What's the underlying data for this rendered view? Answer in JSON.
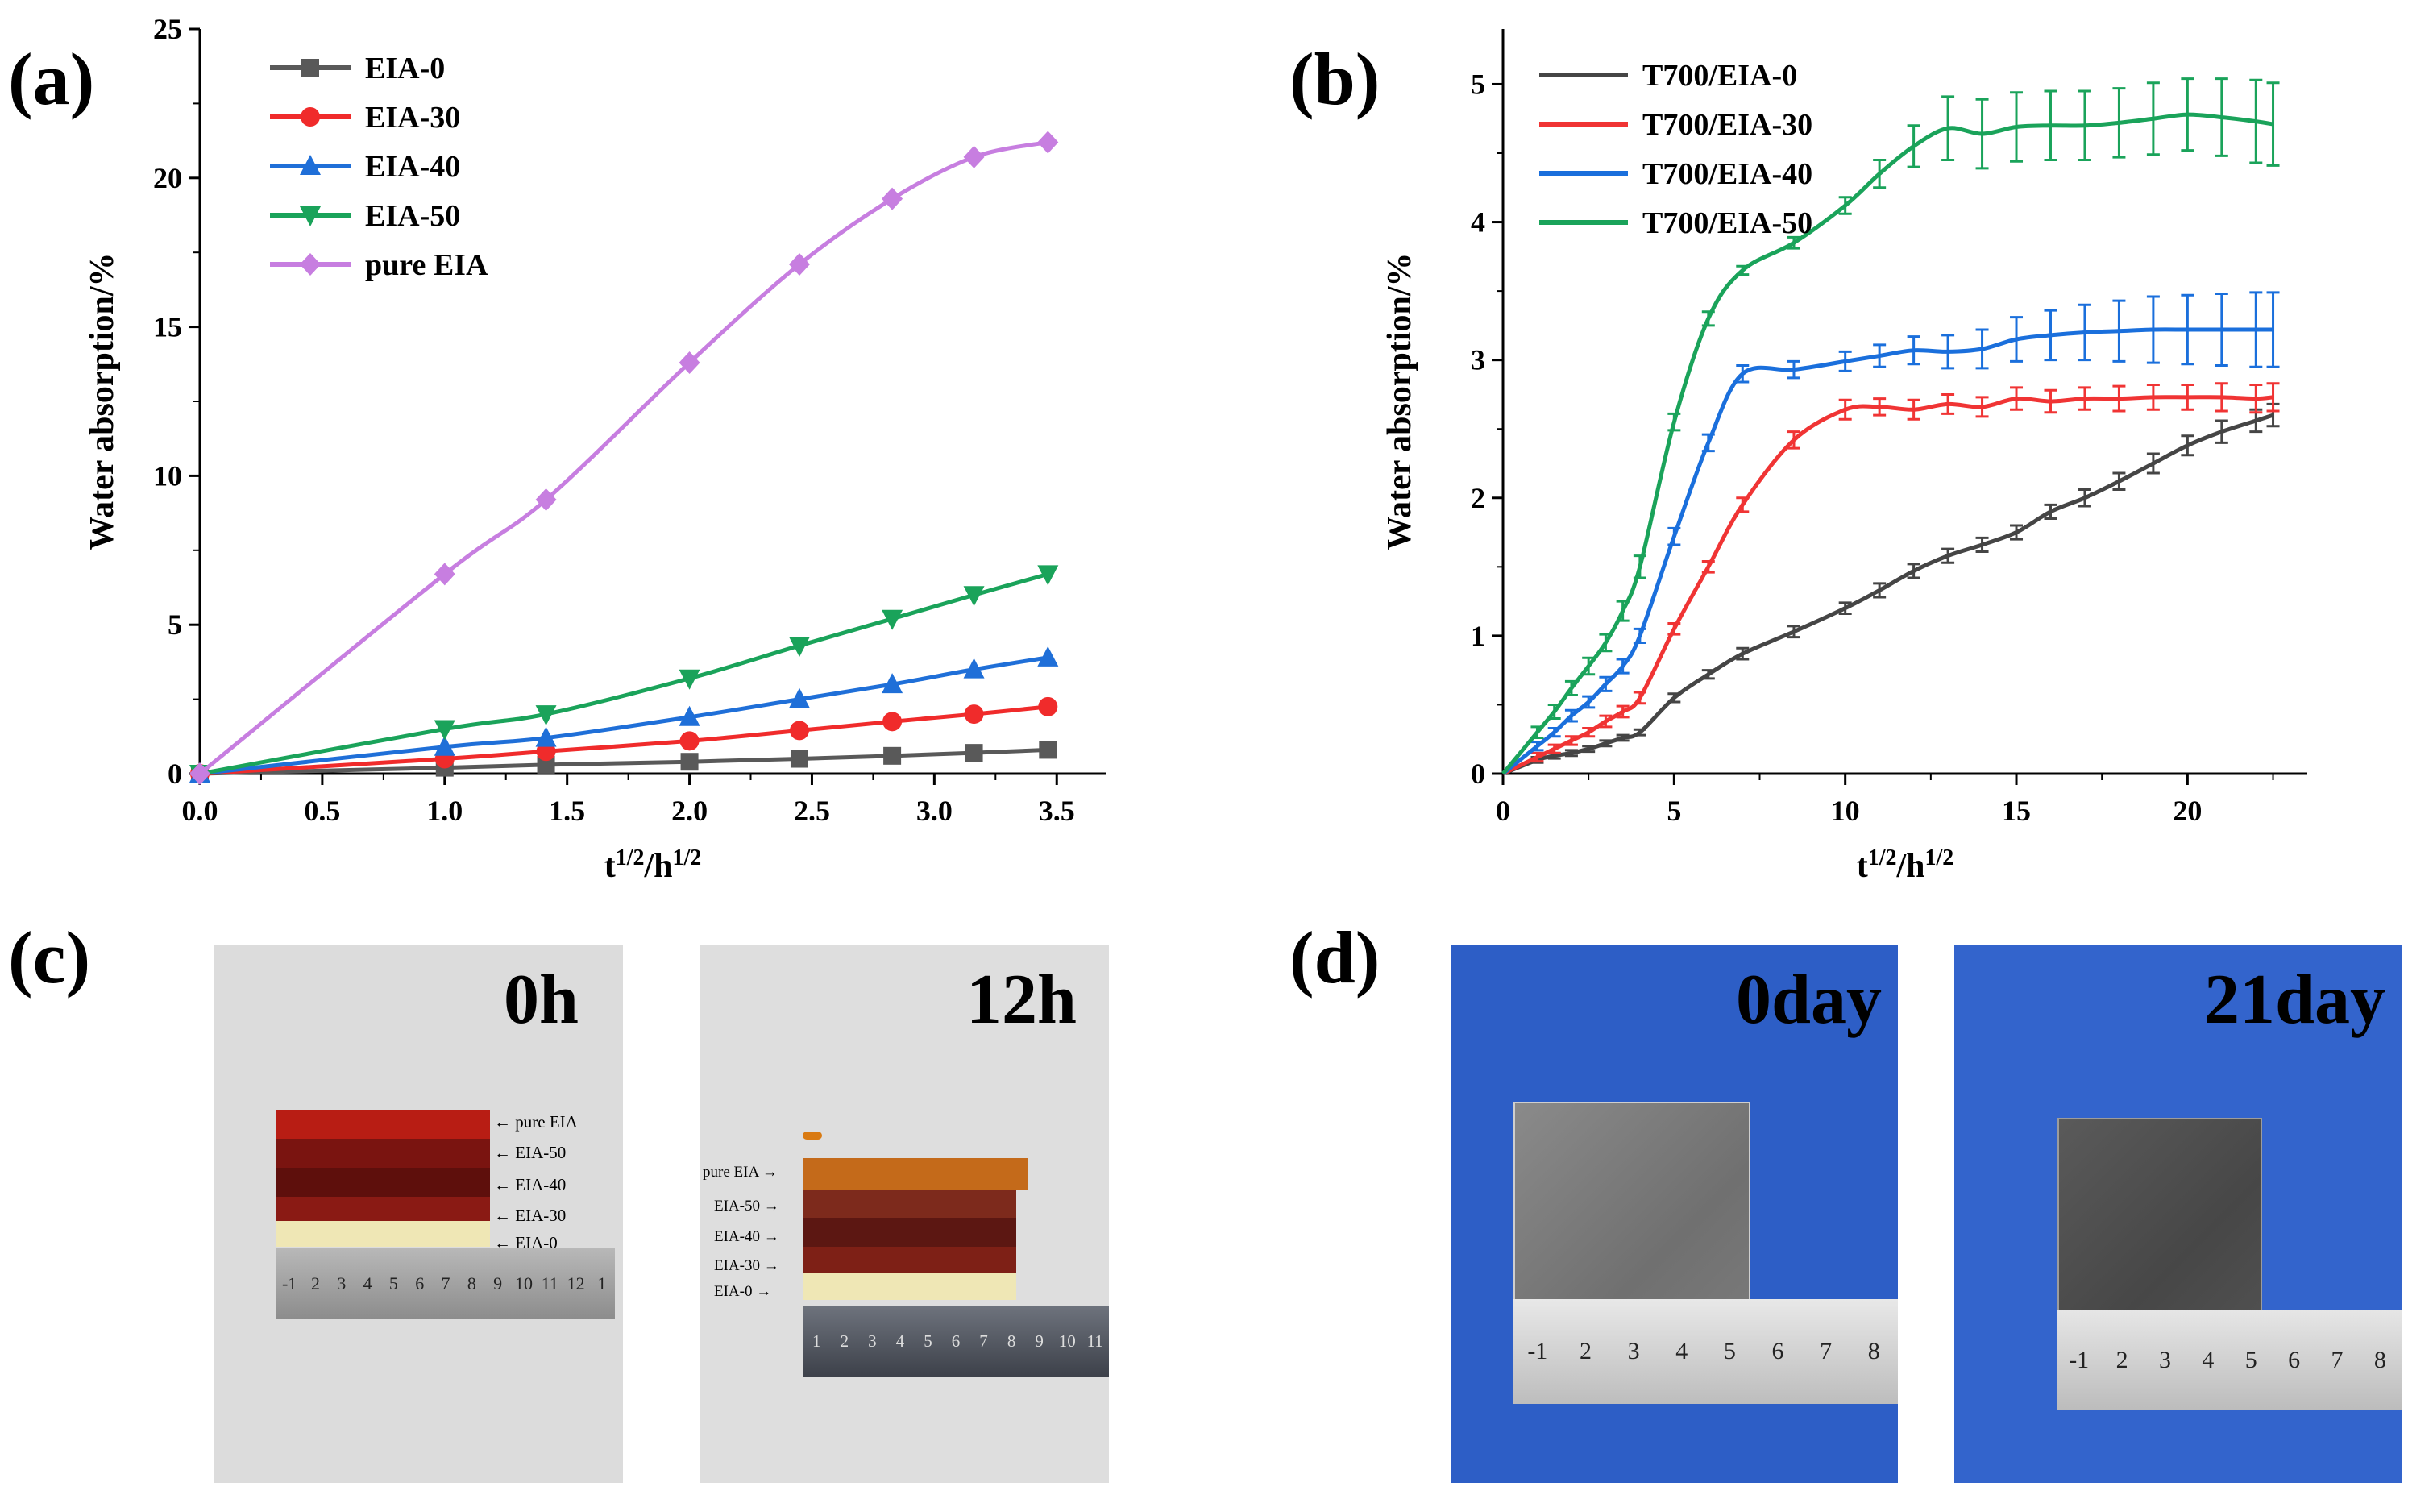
{
  "panels": {
    "a": "(a)",
    "b": "(b)",
    "c": "(c)",
    "d": "(d)"
  },
  "chart_data": [
    {
      "type": "line",
      "panel": "(a)",
      "xlabel_base": "t",
      "xlabel_sup1": "1/2",
      "xlabel_mid": "/h",
      "xlabel_sup2": "1/2",
      "ylabel": "Water absorption/%",
      "xlim": [
        0,
        3.7
      ],
      "ylim": [
        0,
        25
      ],
      "xticks": [
        "0.0",
        "0.5",
        "1.0",
        "1.5",
        "2.0",
        "2.5",
        "3.0",
        "3.5"
      ],
      "yticks": [
        "0",
        "5",
        "10",
        "15",
        "20",
        "25"
      ],
      "legend_position": "top-left",
      "series": [
        {
          "name": "EIA-0",
          "color": "#595959",
          "marker": "square",
          "x": [
            0,
            1.0,
            1.414,
            2.0,
            2.449,
            2.828,
            3.162,
            3.464
          ],
          "y": [
            0,
            0.2,
            0.3,
            0.4,
            0.5,
            0.6,
            0.7,
            0.8
          ]
        },
        {
          "name": "EIA-30",
          "color": "#f02b2b",
          "marker": "circle",
          "x": [
            0,
            1.0,
            1.414,
            2.0,
            2.449,
            2.828,
            3.162,
            3.464
          ],
          "y": [
            0,
            0.5,
            0.75,
            1.1,
            1.45,
            1.75,
            2.0,
            2.25
          ]
        },
        {
          "name": "EIA-40",
          "color": "#1f6fd8",
          "marker": "triangle-up",
          "x": [
            0,
            1.0,
            1.414,
            2.0,
            2.449,
            2.828,
            3.162,
            3.464
          ],
          "y": [
            0,
            0.9,
            1.2,
            1.9,
            2.5,
            3.0,
            3.5,
            3.9
          ]
        },
        {
          "name": "EIA-50",
          "color": "#1aa35a",
          "marker": "triangle-down",
          "x": [
            0,
            1.0,
            1.414,
            2.0,
            2.449,
            2.828,
            3.162,
            3.464
          ],
          "y": [
            0,
            1.5,
            2.0,
            3.2,
            4.3,
            5.2,
            6.0,
            6.7
          ]
        },
        {
          "name": "pure EIA",
          "color": "#c77ee0",
          "marker": "diamond",
          "x": [
            0,
            1.0,
            1.414,
            2.0,
            2.449,
            2.828,
            3.162,
            3.464
          ],
          "y": [
            0,
            6.7,
            9.2,
            13.8,
            17.1,
            19.3,
            20.7,
            21.2
          ]
        }
      ]
    },
    {
      "type": "line",
      "panel": "(b)",
      "xlabel_base": "t",
      "xlabel_sup1": "1/2",
      "xlabel_mid": "/h",
      "xlabel_sup2": "1/2",
      "ylabel": "Water absorption/%",
      "xlim": [
        0,
        23.5
      ],
      "ylim": [
        0,
        5.4
      ],
      "xticks": [
        "0",
        "5",
        "10",
        "15",
        "20"
      ],
      "yticks": [
        "0",
        "1",
        "2",
        "3",
        "4",
        "5"
      ],
      "legend_position": "top-left",
      "series": [
        {
          "name": "T700/EIA-0",
          "color": "#454545",
          "x": [
            0,
            1,
            1.5,
            2,
            2.5,
            3,
            3.5,
            4,
            5,
            6,
            7,
            8.5,
            10,
            11,
            12,
            13,
            14,
            15,
            16,
            17,
            18,
            19,
            20,
            21,
            22,
            22.5
          ],
          "y": [
            0,
            0.1,
            0.13,
            0.15,
            0.18,
            0.22,
            0.26,
            0.3,
            0.55,
            0.72,
            0.87,
            1.03,
            1.2,
            1.33,
            1.47,
            1.58,
            1.66,
            1.75,
            1.9,
            2.0,
            2.12,
            2.25,
            2.38,
            2.48,
            2.56,
            2.6
          ],
          "err": [
            0,
            0.02,
            0.02,
            0.02,
            0.02,
            0.02,
            0.02,
            0.02,
            0.03,
            0.03,
            0.04,
            0.04,
            0.04,
            0.05,
            0.05,
            0.05,
            0.05,
            0.05,
            0.05,
            0.06,
            0.06,
            0.07,
            0.07,
            0.08,
            0.08,
            0.08
          ]
        },
        {
          "name": "T700/EIA-30",
          "color": "#f03434",
          "x": [
            0,
            1,
            1.5,
            2,
            2.5,
            3,
            3.5,
            4,
            5,
            6,
            7,
            8.5,
            10,
            11,
            12,
            13,
            14,
            15,
            16,
            17,
            18,
            19,
            20,
            21,
            22,
            22.5
          ],
          "y": [
            0,
            0.12,
            0.18,
            0.24,
            0.3,
            0.38,
            0.45,
            0.55,
            1.05,
            1.5,
            1.95,
            2.42,
            2.64,
            2.66,
            2.64,
            2.68,
            2.66,
            2.72,
            2.7,
            2.72,
            2.72,
            2.73,
            2.73,
            2.73,
            2.72,
            2.73
          ],
          "err": [
            0,
            0.03,
            0.03,
            0.03,
            0.03,
            0.04,
            0.04,
            0.04,
            0.04,
            0.04,
            0.05,
            0.06,
            0.07,
            0.06,
            0.07,
            0.07,
            0.07,
            0.08,
            0.08,
            0.08,
            0.09,
            0.09,
            0.09,
            0.1,
            0.1,
            0.1
          ]
        },
        {
          "name": "T700/EIA-40",
          "color": "#1a6fdc",
          "x": [
            0,
            1,
            1.5,
            2,
            2.5,
            3,
            3.5,
            4,
            5,
            6,
            7,
            8.5,
            10,
            11,
            12,
            13,
            14,
            15,
            16,
            17,
            18,
            19,
            20,
            21,
            22,
            22.5
          ],
          "y": [
            0,
            0.2,
            0.3,
            0.42,
            0.52,
            0.65,
            0.78,
            1.0,
            1.72,
            2.4,
            2.9,
            2.93,
            2.99,
            3.03,
            3.07,
            3.06,
            3.08,
            3.15,
            3.18,
            3.2,
            3.21,
            3.22,
            3.22,
            3.22,
            3.22,
            3.22
          ],
          "err": [
            0,
            0.03,
            0.03,
            0.04,
            0.04,
            0.05,
            0.05,
            0.05,
            0.06,
            0.06,
            0.06,
            0.06,
            0.07,
            0.08,
            0.1,
            0.12,
            0.14,
            0.16,
            0.18,
            0.2,
            0.22,
            0.24,
            0.25,
            0.26,
            0.27,
            0.27
          ]
        },
        {
          "name": "T700/EIA-50",
          "color": "#1aa35a",
          "x": [
            0,
            1,
            1.5,
            2,
            2.5,
            3,
            3.5,
            4,
            5,
            6,
            7,
            8.5,
            10,
            11,
            12,
            13,
            14,
            15,
            16,
            17,
            18,
            19,
            20,
            21,
            22,
            22.5
          ],
          "y": [
            0,
            0.3,
            0.45,
            0.62,
            0.78,
            0.95,
            1.18,
            1.5,
            2.55,
            3.3,
            3.65,
            3.85,
            4.12,
            4.35,
            4.55,
            4.68,
            4.64,
            4.69,
            4.7,
            4.7,
            4.72,
            4.75,
            4.78,
            4.76,
            4.73,
            4.71
          ],
          "err": [
            0,
            0.04,
            0.05,
            0.05,
            0.06,
            0.06,
            0.07,
            0.08,
            0.06,
            0.05,
            0.03,
            0.04,
            0.06,
            0.1,
            0.15,
            0.23,
            0.25,
            0.25,
            0.25,
            0.25,
            0.25,
            0.26,
            0.26,
            0.28,
            0.3,
            0.3
          ]
        }
      ]
    }
  ],
  "photo_c1": {
    "title": "0h",
    "labels": [
      "pure EIA",
      "EIA-50",
      "EIA-40",
      "EIA-30",
      "EIA-0"
    ],
    "ruler": [
      "-1",
      "2",
      "3",
      "4",
      "5",
      "6",
      "7",
      "8",
      "9",
      "10",
      "11",
      "12",
      "1"
    ]
  },
  "photo_c2": {
    "title": "12h",
    "labels": [
      "pure EIA",
      "EIA-50",
      "EIA-40",
      "EIA-30",
      "EIA-0"
    ],
    "ruler": [
      "1",
      "2",
      "3",
      "4",
      "5",
      "6",
      "7",
      "8",
      "9",
      "10",
      "11"
    ]
  },
  "photo_d1": {
    "title": "0day",
    "ruler": [
      "-1",
      "2",
      "3",
      "4",
      "5",
      "6",
      "7",
      "8"
    ]
  },
  "photo_d2": {
    "title": "21day",
    "ruler": [
      "-1",
      "2",
      "3",
      "4",
      "5",
      "6",
      "7",
      "8"
    ]
  },
  "colors": {
    "page_bg": "#ffffff",
    "photo_c_bg": "#dedede",
    "photo_d_bg": "#2b5cc4"
  }
}
